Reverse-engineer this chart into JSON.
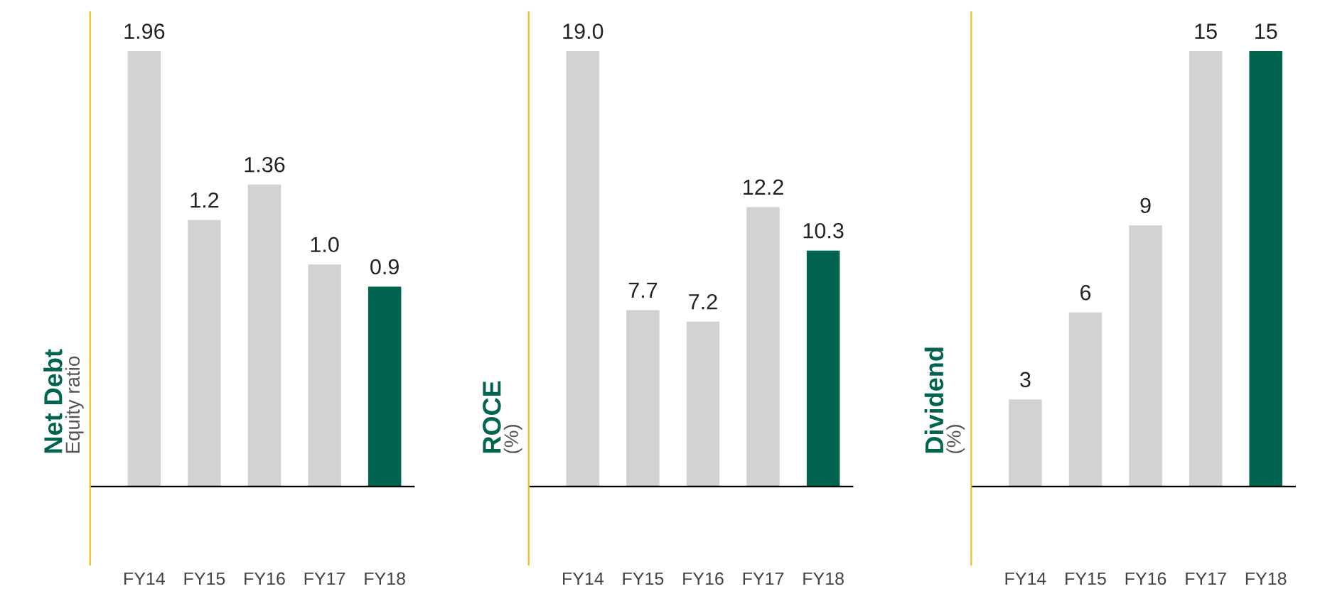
{
  "chart_data": [
    {
      "type": "bar",
      "ylabel": "Net Debt\nEquity ratio",
      "categories": [
        "FY14",
        "FY15",
        "FY16",
        "FY17",
        "FY18"
      ],
      "values": [
        1.96,
        1.2,
        1.36,
        1.0,
        0.9
      ],
      "value_labels": [
        "1.96",
        "1.2",
        "1.36",
        "1.0",
        "0.9"
      ],
      "colors": [
        "#d1d2d4",
        "#d1d2d4",
        "#d1d2d4",
        "#d1d2d4",
        "#006450"
      ],
      "grid": false,
      "legend": false
    },
    {
      "type": "bar",
      "ylabel": "ROCE\n(%)",
      "categories": [
        "FY14",
        "FY15",
        "FY16",
        "FY17",
        "FY18"
      ],
      "values": [
        19.0,
        7.7,
        7.2,
        12.2,
        10.3
      ],
      "value_labels": [
        "19.0",
        "7.7",
        "7.2",
        "12.2",
        "10.3"
      ],
      "colors": [
        "#d1d2d4",
        "#d1d2d4",
        "#d1d2d4",
        "#d1d2d4",
        "#006450"
      ],
      "grid": false,
      "legend": false
    },
    {
      "type": "bar",
      "ylabel": "Dividend\n(%)",
      "categories": [
        "FY14",
        "FY15",
        "FY16",
        "FY17",
        "FY18"
      ],
      "values": [
        3,
        6,
        9,
        15,
        15
      ],
      "data_labels": true,
      "colors": [
        "#d1d2d4",
        "#d1d2d4",
        "#d1d2d4",
        "#d1d2d4",
        "#006450"
      ],
      "grid": false,
      "legend": false
    }
  ]
}
